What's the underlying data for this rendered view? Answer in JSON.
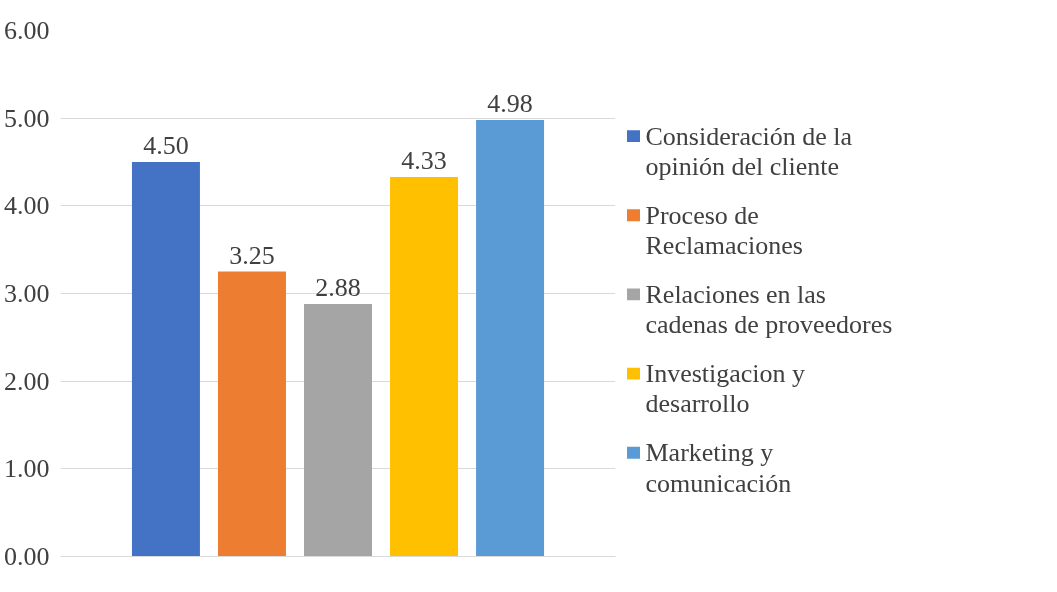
{
  "chart_data": {
    "type": "bar",
    "categories": [
      null
    ],
    "series": [
      {
        "name": "Consideración de la opinión del cliente",
        "color": "#4472c4",
        "values": [
          4.5
        ],
        "value_labels": [
          "4.50"
        ]
      },
      {
        "name": "Proceso de Reclamaciones",
        "color": "#ed7d31",
        "values": [
          3.25
        ],
        "value_labels": [
          "3.25"
        ]
      },
      {
        "name": "Relaciones en las cadenas de proveedores",
        "color": "#a5a5a5",
        "values": [
          2.88
        ],
        "value_labels": [
          "2.88"
        ]
      },
      {
        "name": "Investigacion y desarrollo",
        "color": "#ffc000",
        "values": [
          4.33
        ],
        "value_labels": [
          "4.33"
        ]
      },
      {
        "name": "Marketing y comunicación",
        "color": "#5b9bd5",
        "values": [
          4.98
        ],
        "value_labels": [
          "4.98"
        ]
      }
    ],
    "ylim": [
      0,
      6
    ],
    "yticks": [
      {
        "value": 0,
        "label": "0.00"
      },
      {
        "value": 1,
        "label": "1.00"
      },
      {
        "value": 2,
        "label": "2.00"
      },
      {
        "value": 3,
        "label": "3.00"
      },
      {
        "value": 4,
        "label": "4.00"
      },
      {
        "value": 5,
        "label": "5.00"
      },
      {
        "value": 6,
        "label": "6.00"
      }
    ],
    "grid": "y",
    "legend": "right"
  }
}
